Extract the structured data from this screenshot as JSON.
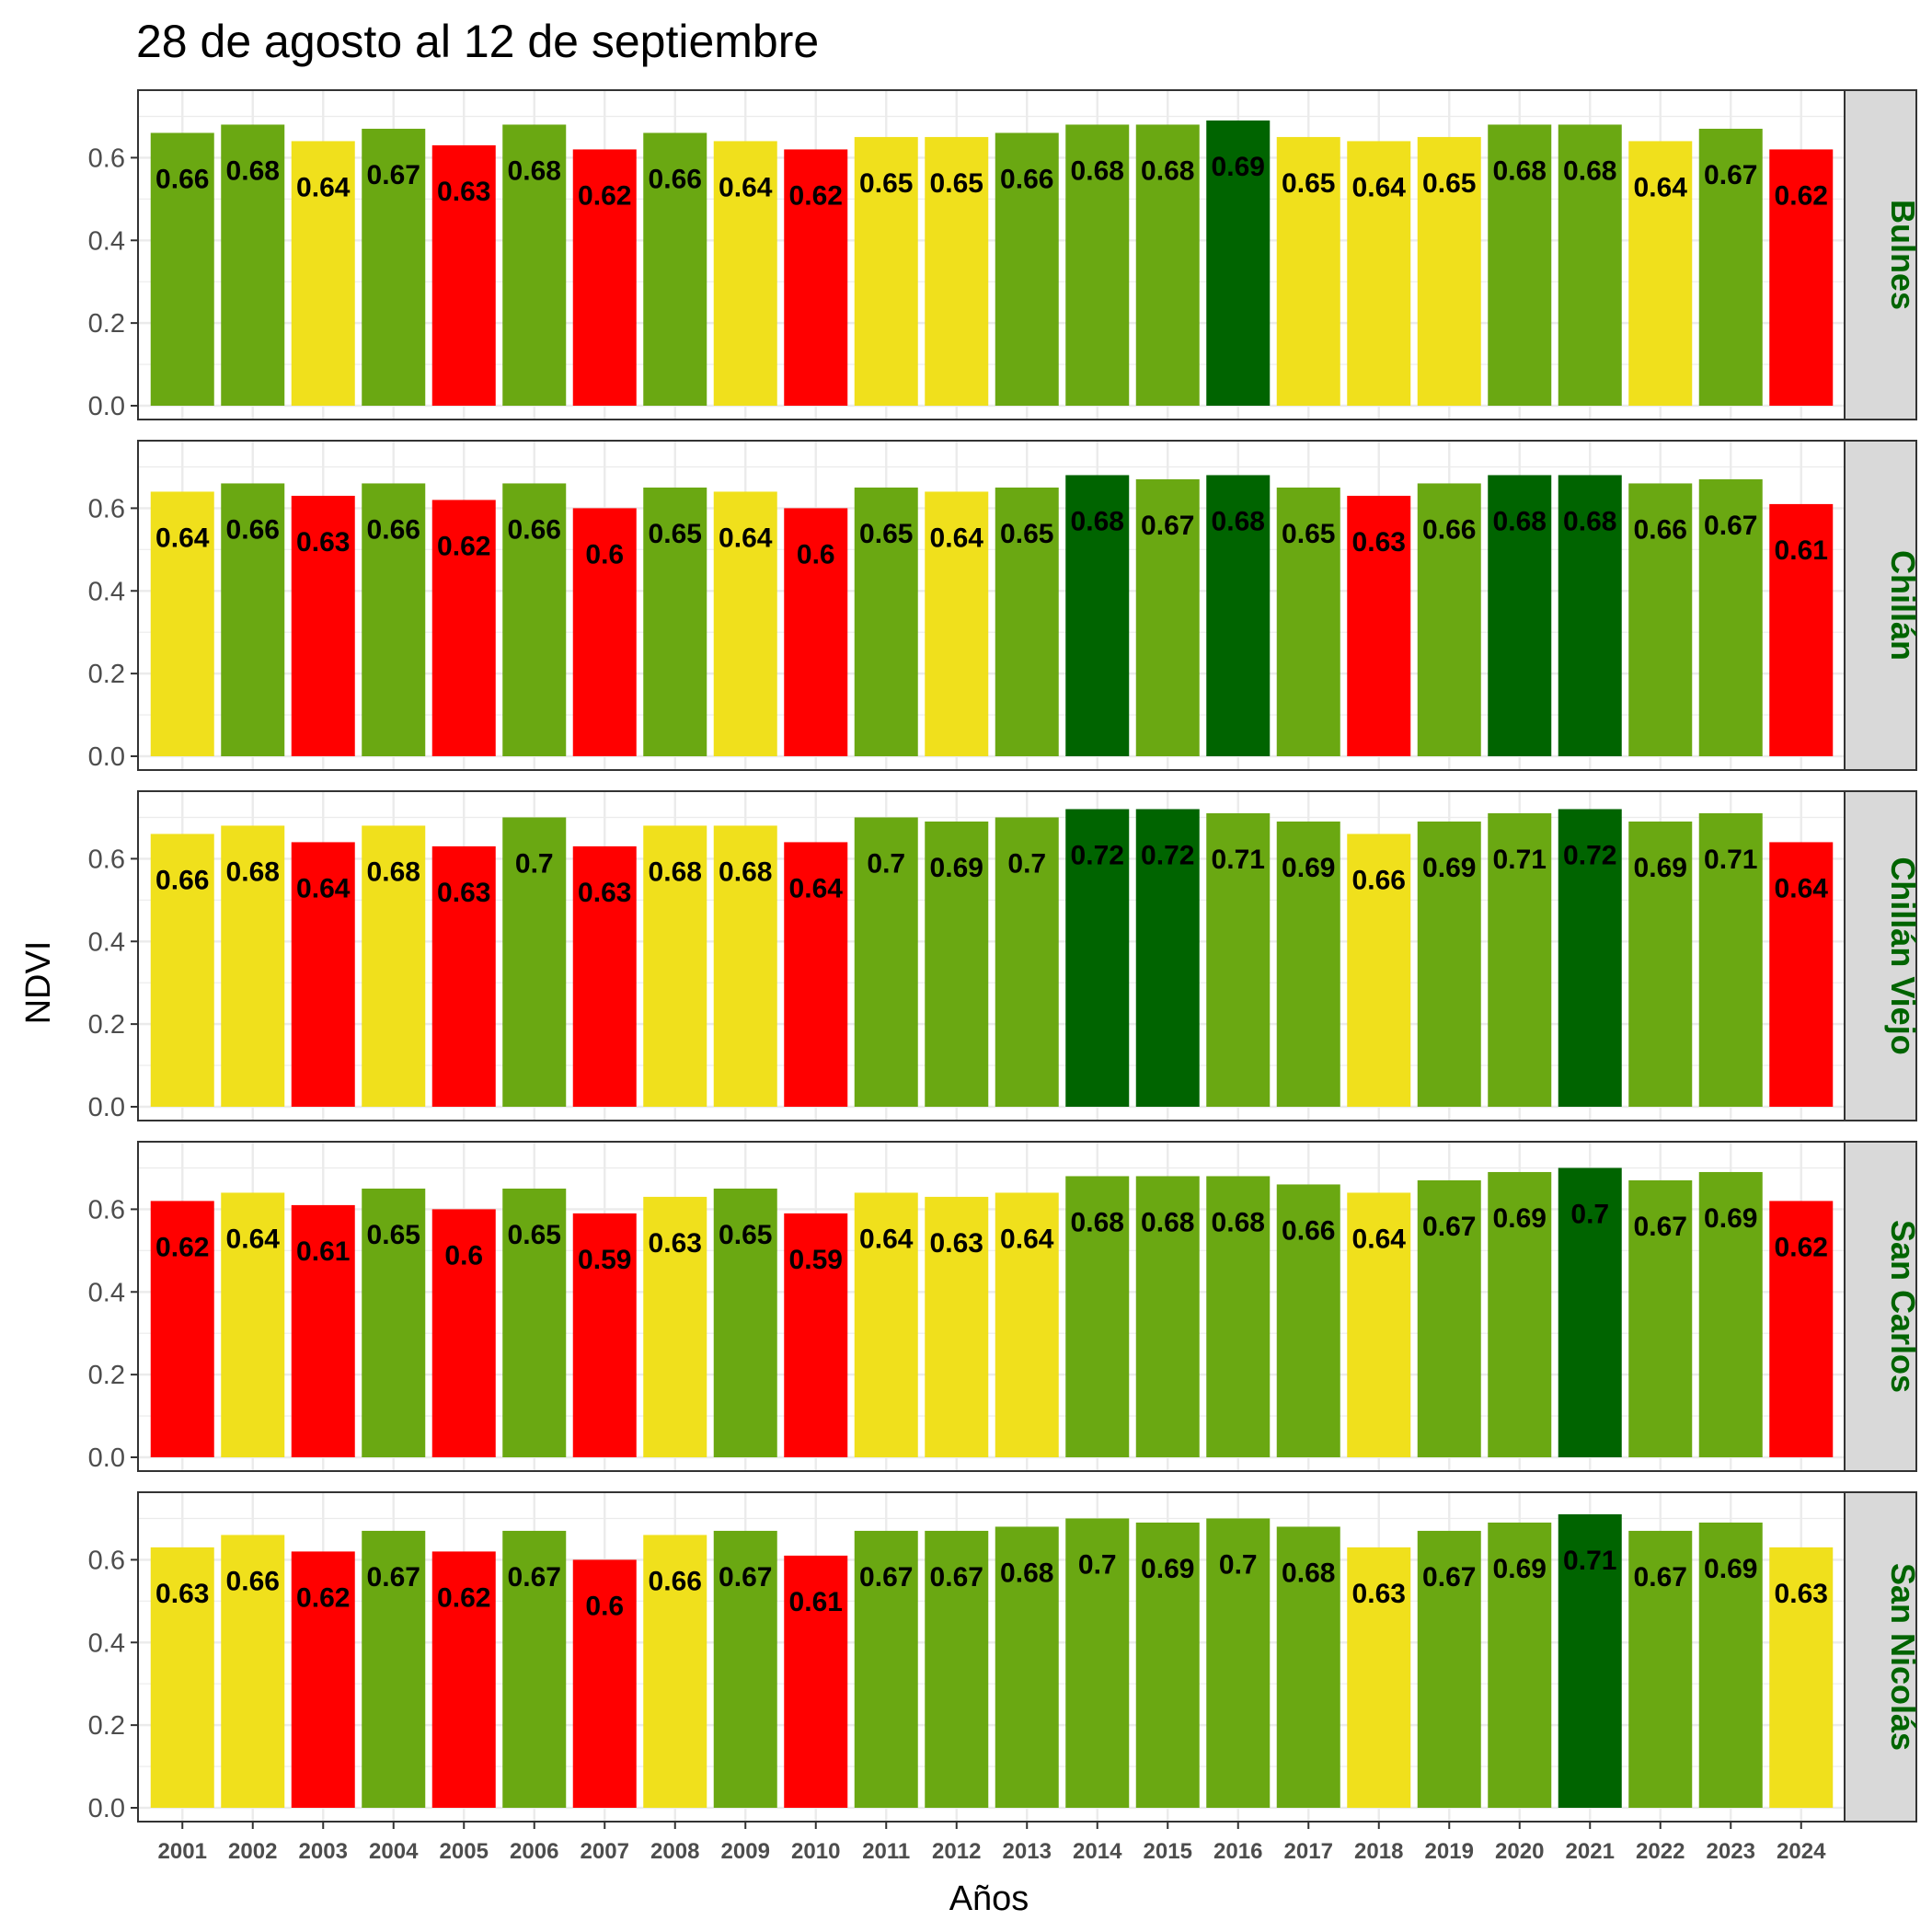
{
  "chart_data": {
    "type": "bar",
    "title": "28 de agosto al 12 de septiembre",
    "xlabel": "Años",
    "ylabel": "NDVI",
    "ylim": [
      0,
      0.75
    ],
    "yticks": [
      "0.0",
      "0.2",
      "0.4",
      "0.6"
    ],
    "grid": true,
    "legend": "none",
    "categories": [
      "2001",
      "2002",
      "2003",
      "2004",
      "2005",
      "2006",
      "2007",
      "2008",
      "2009",
      "2010",
      "2011",
      "2012",
      "2013",
      "2014",
      "2015",
      "2016",
      "2017",
      "2018",
      "2019",
      "2020",
      "2021",
      "2022",
      "2023",
      "2024"
    ],
    "colors": {
      "red": "#ff0000",
      "yellow": "#f0e01c",
      "green": "#6aa812",
      "darkgreen": "#006400",
      "strip_bg": "#d9d9d9",
      "strip_text": "#006400",
      "grid": "#ebebeb"
    },
    "panels": [
      {
        "name": "Bulnes",
        "values": [
          0.66,
          0.68,
          0.64,
          0.67,
          0.63,
          0.68,
          0.62,
          0.66,
          0.64,
          0.62,
          0.65,
          0.65,
          0.66,
          0.68,
          0.68,
          0.69,
          0.65,
          0.64,
          0.65,
          0.68,
          0.68,
          0.64,
          0.67,
          0.62
        ],
        "labels": [
          "0.66",
          "0.68",
          "0.64",
          "0.67",
          "0.63",
          "0.68",
          "0.62",
          "0.66",
          "0.64",
          "0.62",
          "0.65",
          "0.65",
          "0.66",
          "0.68",
          "0.68",
          "0.69",
          "0.65",
          "0.64",
          "0.65",
          "0.68",
          "0.68",
          "0.64",
          "0.67",
          "0.62"
        ],
        "fills": [
          "green",
          "green",
          "yellow",
          "green",
          "red",
          "green",
          "red",
          "green",
          "yellow",
          "red",
          "yellow",
          "yellow",
          "green",
          "green",
          "green",
          "darkgreen",
          "yellow",
          "yellow",
          "yellow",
          "green",
          "green",
          "yellow",
          "green",
          "red"
        ]
      },
      {
        "name": "Chillán",
        "values": [
          0.64,
          0.66,
          0.63,
          0.66,
          0.62,
          0.66,
          0.6,
          0.65,
          0.64,
          0.6,
          0.65,
          0.64,
          0.65,
          0.68,
          0.67,
          0.68,
          0.65,
          0.63,
          0.66,
          0.68,
          0.68,
          0.66,
          0.67,
          0.61
        ],
        "labels": [
          "0.64",
          "0.66",
          "0.63",
          "0.66",
          "0.62",
          "0.66",
          "0.6",
          "0.65",
          "0.64",
          "0.6",
          "0.65",
          "0.64",
          "0.65",
          "0.68",
          "0.67",
          "0.68",
          "0.65",
          "0.63",
          "0.66",
          "0.68",
          "0.68",
          "0.66",
          "0.67",
          "0.61"
        ],
        "fills": [
          "yellow",
          "green",
          "red",
          "green",
          "red",
          "green",
          "red",
          "green",
          "yellow",
          "red",
          "green",
          "yellow",
          "green",
          "darkgreen",
          "green",
          "darkgreen",
          "green",
          "red",
          "green",
          "darkgreen",
          "darkgreen",
          "green",
          "green",
          "red"
        ]
      },
      {
        "name": "Chillán Viejo",
        "values": [
          0.66,
          0.68,
          0.64,
          0.68,
          0.63,
          0.7,
          0.63,
          0.68,
          0.68,
          0.64,
          0.7,
          0.69,
          0.7,
          0.72,
          0.72,
          0.71,
          0.69,
          0.66,
          0.69,
          0.71,
          0.72,
          0.69,
          0.71,
          0.64
        ],
        "labels": [
          "0.66",
          "0.68",
          "0.64",
          "0.68",
          "0.63",
          "0.7",
          "0.63",
          "0.68",
          "0.68",
          "0.64",
          "0.7",
          "0.69",
          "0.7",
          "0.72",
          "0.72",
          "0.71",
          "0.69",
          "0.66",
          "0.69",
          "0.71",
          "0.72",
          "0.69",
          "0.71",
          "0.64"
        ],
        "fills": [
          "yellow",
          "yellow",
          "red",
          "yellow",
          "red",
          "green",
          "red",
          "yellow",
          "yellow",
          "red",
          "green",
          "green",
          "green",
          "darkgreen",
          "darkgreen",
          "green",
          "green",
          "yellow",
          "green",
          "green",
          "darkgreen",
          "green",
          "green",
          "red"
        ]
      },
      {
        "name": "San Carlos",
        "values": [
          0.62,
          0.64,
          0.61,
          0.65,
          0.6,
          0.65,
          0.59,
          0.63,
          0.65,
          0.59,
          0.64,
          0.63,
          0.64,
          0.68,
          0.68,
          0.68,
          0.66,
          0.64,
          0.67,
          0.69,
          0.7,
          0.67,
          0.69,
          0.62
        ],
        "labels": [
          "0.62",
          "0.64",
          "0.61",
          "0.65",
          "0.6",
          "0.65",
          "0.59",
          "0.63",
          "0.65",
          "0.59",
          "0.64",
          "0.63",
          "0.64",
          "0.68",
          "0.68",
          "0.68",
          "0.66",
          "0.64",
          "0.67",
          "0.69",
          "0.7",
          "0.67",
          "0.69",
          "0.62"
        ],
        "fills": [
          "red",
          "yellow",
          "red",
          "green",
          "red",
          "green",
          "red",
          "yellow",
          "green",
          "red",
          "yellow",
          "yellow",
          "yellow",
          "green",
          "green",
          "green",
          "green",
          "yellow",
          "green",
          "green",
          "darkgreen",
          "green",
          "green",
          "red"
        ]
      },
      {
        "name": "San Nicolás",
        "values": [
          0.63,
          0.66,
          0.62,
          0.67,
          0.62,
          0.67,
          0.6,
          0.66,
          0.67,
          0.61,
          0.67,
          0.67,
          0.68,
          0.7,
          0.69,
          0.7,
          0.68,
          0.63,
          0.67,
          0.69,
          0.71,
          0.67,
          0.69,
          0.63
        ],
        "labels": [
          "0.63",
          "0.66",
          "0.62",
          "0.67",
          "0.62",
          "0.67",
          "0.6",
          "0.66",
          "0.67",
          "0.61",
          "0.67",
          "0.67",
          "0.68",
          "0.7",
          "0.69",
          "0.7",
          "0.68",
          "0.63",
          "0.67",
          "0.69",
          "0.71",
          "0.67",
          "0.69",
          "0.63"
        ],
        "fills": [
          "yellow",
          "yellow",
          "red",
          "green",
          "red",
          "green",
          "red",
          "yellow",
          "green",
          "red",
          "green",
          "green",
          "green",
          "green",
          "green",
          "green",
          "green",
          "yellow",
          "green",
          "green",
          "darkgreen",
          "green",
          "green",
          "yellow"
        ]
      }
    ]
  }
}
